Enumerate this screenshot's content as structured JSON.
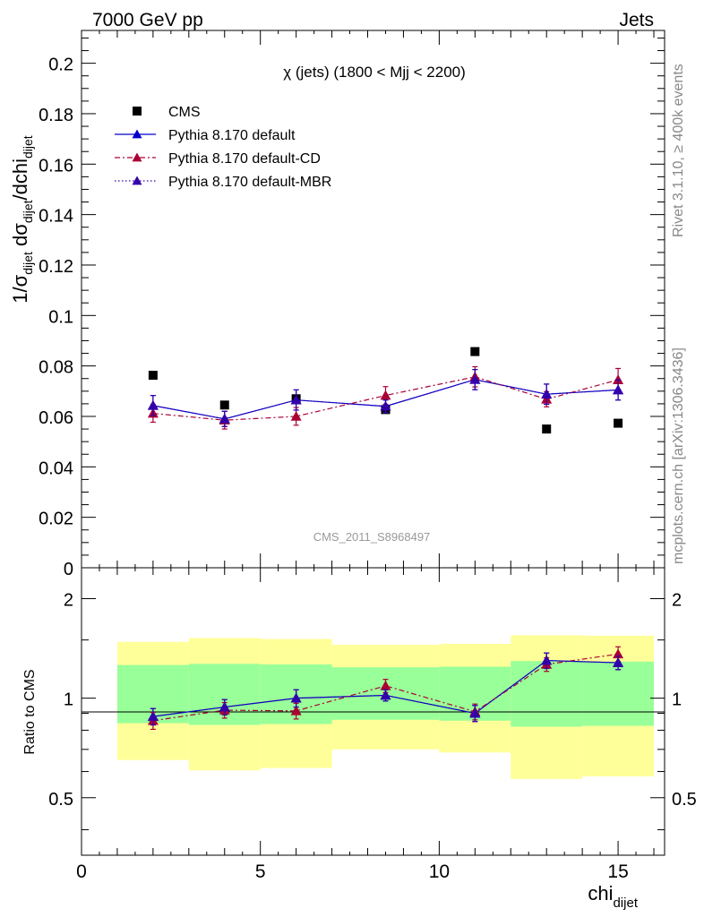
{
  "header": {
    "left": "7000 GeV pp",
    "right": "Jets",
    "side_top": "Rivet 3.1.10, ≥ 400k events",
    "side_bottom": "mcplots.cern.ch [arXiv:1306.3436]",
    "analysis": "CMS_2011_S8968497"
  },
  "colors": {
    "cms": "#000000",
    "default": "#0000cc",
    "default_cd": "#aa0033",
    "default_mbr": "#3300aa",
    "band_inner": "#99ff99",
    "band_outer": "#ffff99"
  },
  "chart_data": [
    {
      "type": "scatter",
      "title": "χ (jets) (1800 < Mjj < 2200)",
      "ylabel": "1/σ_dijet dσ_dijet/dchi_dijet",
      "ylim": [
        0,
        0.213
      ],
      "yticks": [
        "0",
        "0.02",
        "0.04",
        "0.06",
        "0.08",
        "0.1",
        "0.12",
        "0.14",
        "0.16",
        "0.18",
        "0.2"
      ],
      "legend_placement": "top-left",
      "x": [
        2,
        4,
        6,
        8.5,
        11,
        13,
        15
      ],
      "series": [
        {
          "name": "CMS",
          "style": "marker",
          "values": [
            0.0763,
            0.0645,
            0.067,
            0.0627,
            0.0857,
            0.055,
            0.0573
          ],
          "err": [
            0.0012,
            0.0012,
            0.0012,
            0.0012,
            0.0012,
            0.0012,
            0.0012
          ]
        },
        {
          "name": "Pythia 8.170 default",
          "style": "solid",
          "values": [
            0.0643,
            0.059,
            0.0665,
            0.064,
            0.0746,
            0.0688,
            0.0705
          ],
          "err": [
            0.004,
            0.003,
            0.004,
            0.0025,
            0.004,
            0.004,
            0.004
          ]
        },
        {
          "name": "Pythia 8.170 default-CD",
          "style": "dashdot",
          "values": [
            0.0612,
            0.0585,
            0.06,
            0.0683,
            0.0757,
            0.0668,
            0.0745
          ],
          "err": [
            0.0035,
            0.0035,
            0.0035,
            0.0035,
            0.004,
            0.003,
            0.0045
          ]
        },
        {
          "name": "Pythia 8.170 default-MBR",
          "style": "dotted",
          "values": [
            0.0643,
            0.059,
            0.0665,
            0.064,
            0.0746,
            0.0688,
            0.0705
          ],
          "err": [
            0.004,
            0.003,
            0.004,
            0.0025,
            0.004,
            0.004,
            0.004
          ]
        }
      ]
    },
    {
      "type": "scatter",
      "xlabel": "chi_dijet",
      "ylabel": "Ratio to CMS",
      "xlim": [
        0,
        16.3
      ],
      "xticks": [
        "0",
        "5",
        "10",
        "15"
      ],
      "yscale": "log",
      "ylim": [
        0.335,
        2.48
      ],
      "yticks": [
        "0.5",
        "1",
        "2"
      ],
      "bands": {
        "edges": [
          1,
          3,
          5,
          7,
          10,
          12,
          14,
          16
        ],
        "inner_low": [
          0.84,
          0.83,
          0.835,
          0.86,
          0.855,
          0.82,
          0.825
        ],
        "inner_high": [
          1.26,
          1.27,
          1.265,
          1.24,
          1.245,
          1.295,
          1.29
        ],
        "outer_low": [
          0.65,
          0.605,
          0.615,
          0.7,
          0.685,
          0.57,
          0.58
        ],
        "outer_high": [
          1.48,
          1.52,
          1.51,
          1.45,
          1.46,
          1.55,
          1.545
        ]
      },
      "x": [
        2,
        4,
        6,
        8.5,
        11,
        13,
        15
      ],
      "series": [
        {
          "name": "Pythia 8.170 default",
          "style": "solid",
          "values": [
            0.88,
            0.94,
            1.0,
            1.02,
            0.9,
            1.3,
            1.28
          ],
          "err": [
            0.05,
            0.05,
            0.06,
            0.04,
            0.05,
            0.07,
            0.06
          ]
        },
        {
          "name": "Pythia 8.170 default-CD",
          "style": "dashdot",
          "values": [
            0.855,
            0.92,
            0.915,
            1.09,
            0.91,
            1.265,
            1.36
          ],
          "err": [
            0.05,
            0.05,
            0.05,
            0.05,
            0.05,
            0.06,
            0.07
          ]
        },
        {
          "name": "Pythia 8.170 default-MBR",
          "style": "dotted",
          "values": [
            0.88,
            0.94,
            1.0,
            1.02,
            0.9,
            1.3,
            1.28
          ],
          "err": [
            0.05,
            0.05,
            0.06,
            0.04,
            0.05,
            0.07,
            0.06
          ]
        }
      ]
    }
  ]
}
